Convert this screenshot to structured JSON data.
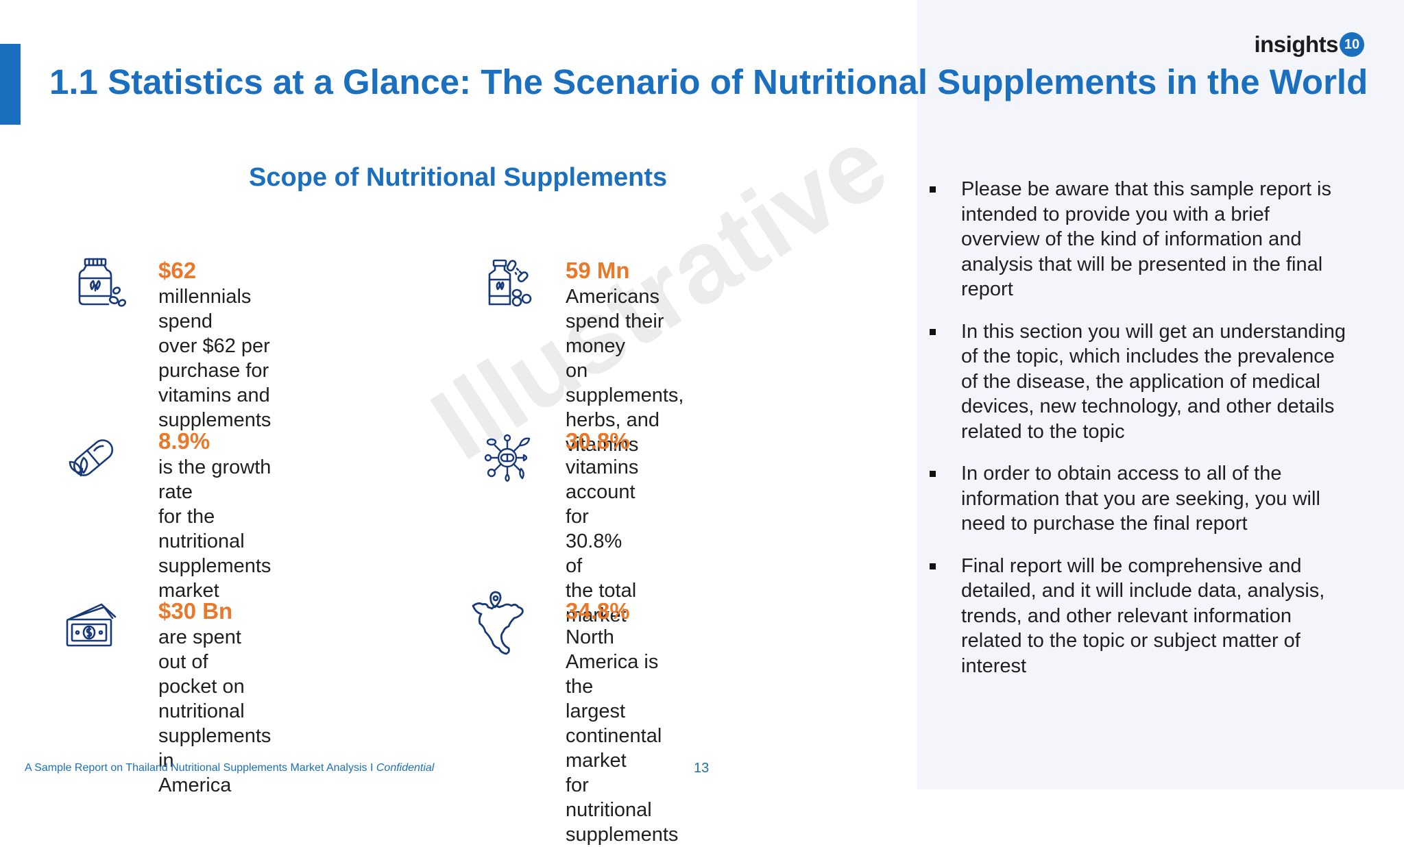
{
  "header": {
    "title": "1.1 Statistics at a Glance: The Scenario of Nutritional Supplements in the World",
    "logo_text": "insights",
    "logo_badge": "10"
  },
  "scope": {
    "title": "Scope of Nutritional Supplements"
  },
  "stats": [
    {
      "icon": "supplement-jar-icon",
      "value": "$62",
      "desc_lines": [
        "millennials spend",
        "over $62 per",
        "purchase for",
        "vitamins and",
        "supplements"
      ]
    },
    {
      "icon": "supplement-bottle-icon",
      "value": "59 Mn",
      "desc_lines": [
        "Americans spend their money",
        "on supplements, herbs, and",
        "vitamins"
      ]
    },
    {
      "icon": "capsule-leaf-icon",
      "value": "8.9%",
      "desc_lines": [
        "is the growth rate",
        "for the nutritional",
        "supplements",
        "market"
      ]
    },
    {
      "icon": "vitamin-network-icon",
      "value": "30.8%",
      "desc_lines": [
        "vitamins account for 30.8% of",
        "the total market"
      ]
    },
    {
      "icon": "cash-icon",
      "value": "$30 Bn",
      "desc_lines": [
        "are spent out of pocket on",
        "nutritional supplements in",
        "America"
      ]
    },
    {
      "icon": "north-america-map-icon",
      "value": "34.8%",
      "desc_lines": [
        "North America is the",
        "largest continental market",
        "for nutritional",
        "supplements"
      ]
    }
  ],
  "bullets": [
    "Please be aware that this sample report is intended to provide you with a brief overview of the kind of information and analysis that will be presented in the final report",
    "In this section you will get an understanding of the topic, which includes the prevalence of the disease, the application of medical devices, new technology, and other details related to the topic",
    "In order to obtain access to all of the information that you are seeking, you will need to purchase the final report",
    "Final report will be comprehensive and detailed, and it will include data, analysis, trends, and other relevant information related to the topic or subject matter of interest"
  ],
  "watermark": "Illustrative",
  "footer": {
    "text": "A Sample Report on Thailand Nutritional Supplements Market Analysis I ",
    "confidential": "Confidential",
    "page_number": "13"
  },
  "colors": {
    "primary_blue": "#1a6fbe",
    "accent_orange": "#e8782a",
    "icon_navy": "#17397a"
  }
}
